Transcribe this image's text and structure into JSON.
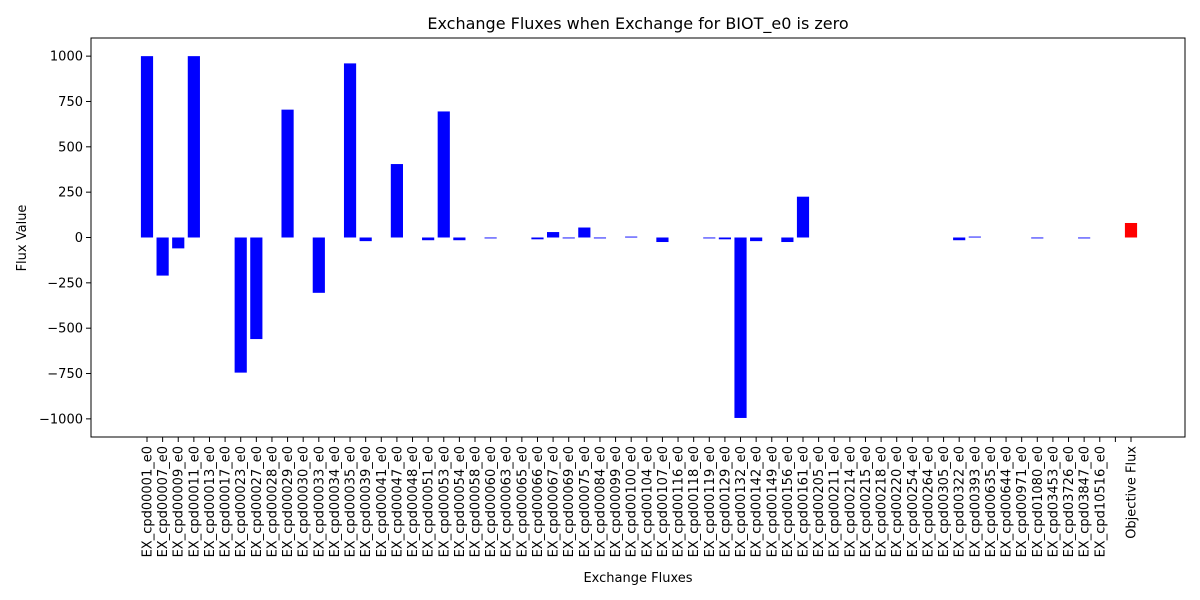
{
  "chart_data": {
    "type": "bar",
    "title": "Exchange Fluxes when Exchange for BIOT_e0 is zero",
    "xlabel": "Exchange Fluxes",
    "ylabel": "Flux Value",
    "ylim": [
      -1100,
      1100
    ],
    "yticks": [
      -1000,
      -750,
      -500,
      -250,
      0,
      250,
      500,
      750,
      1000
    ],
    "grid": false,
    "colors": {
      "default": "#0000ff",
      "highlight": "#ff0000"
    },
    "categories": [
      "EX_cpd00001_e0",
      "EX_cpd00007_e0",
      "EX_cpd00009_e0",
      "EX_cpd00011_e0",
      "EX_cpd00013_e0",
      "EX_cpd00017_e0",
      "EX_cpd00023_e0",
      "EX_cpd00027_e0",
      "EX_cpd00028_e0",
      "EX_cpd00029_e0",
      "EX_cpd00030_e0",
      "EX_cpd00033_e0",
      "EX_cpd00034_e0",
      "EX_cpd00035_e0",
      "EX_cpd00039_e0",
      "EX_cpd00041_e0",
      "EX_cpd00047_e0",
      "EX_cpd00048_e0",
      "EX_cpd00051_e0",
      "EX_cpd00053_e0",
      "EX_cpd00054_e0",
      "EX_cpd00058_e0",
      "EX_cpd00060_e0",
      "EX_cpd00063_e0",
      "EX_cpd00065_e0",
      "EX_cpd00066_e0",
      "EX_cpd00067_e0",
      "EX_cpd00069_e0",
      "EX_cpd00075_e0",
      "EX_cpd00084_e0",
      "EX_cpd00099_e0",
      "EX_cpd00100_e0",
      "EX_cpd00104_e0",
      "EX_cpd00107_e0",
      "EX_cpd00116_e0",
      "EX_cpd00118_e0",
      "EX_cpd00119_e0",
      "EX_cpd00129_e0",
      "EX_cpd00132_e0",
      "EX_cpd00142_e0",
      "EX_cpd00149_e0",
      "EX_cpd00156_e0",
      "EX_cpd00161_e0",
      "EX_cpd00205_e0",
      "EX_cpd00211_e0",
      "EX_cpd00214_e0",
      "EX_cpd00215_e0",
      "EX_cpd00218_e0",
      "EX_cpd00220_e0",
      "EX_cpd00254_e0",
      "EX_cpd00264_e0",
      "EX_cpd00305_e0",
      "EX_cpd00322_e0",
      "EX_cpd00393_e0",
      "EX_cpd00635_e0",
      "EX_cpd00644_e0",
      "EX_cpd00971_e0",
      "EX_cpd01080_e0",
      "EX_cpd03453_e0",
      "EX_cpd03726_e0",
      "EX_cpd03847_e0",
      "EX_cpd10516_e0",
      "",
      "Objective Flux"
    ],
    "values": [
      1000,
      -210,
      -60,
      1000,
      0,
      0,
      -745,
      -560,
      0,
      705,
      0,
      -305,
      0,
      960,
      -20,
      0,
      405,
      0,
      -15,
      695,
      -15,
      0,
      -5,
      0,
      0,
      -10,
      30,
      -5,
      55,
      -5,
      0,
      5,
      0,
      -25,
      0,
      0,
      -5,
      -10,
      -995,
      -20,
      0,
      -25,
      225,
      0,
      0,
      0,
      0,
      0,
      0,
      0,
      0,
      0,
      -15,
      5,
      0,
      0,
      0,
      -5,
      0,
      0,
      -5,
      0,
      0,
      80
    ],
    "highlight_index": 63
  }
}
